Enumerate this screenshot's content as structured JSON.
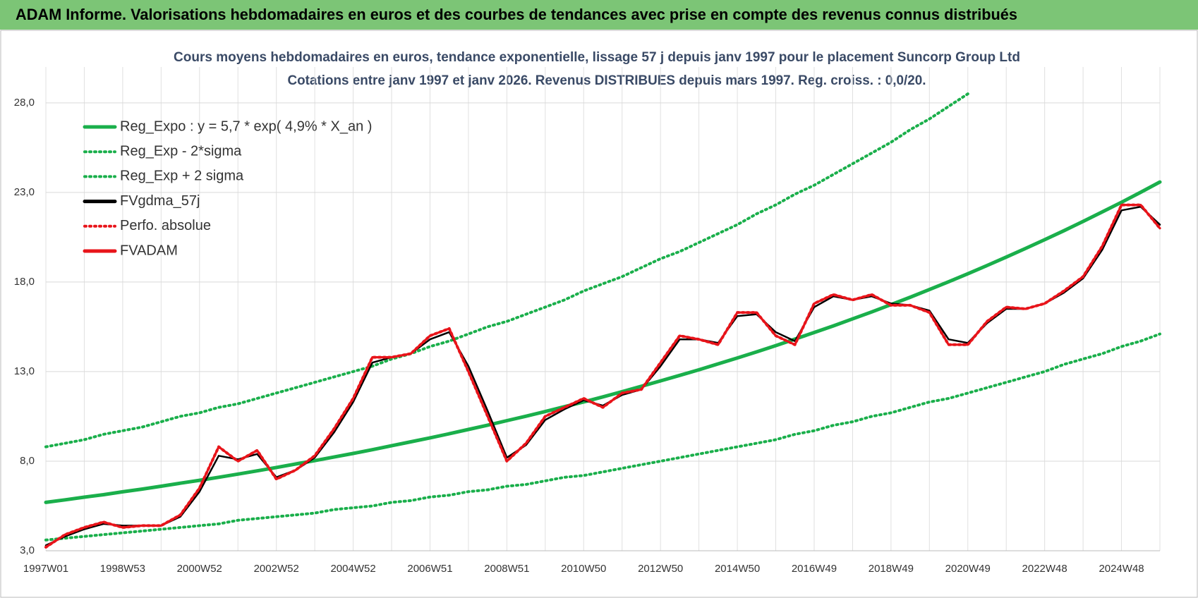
{
  "header": {
    "title": "ADAM Informe. Valorisations hebdomadaires en euros et des courbes de tendances avec prise en compte des revenus connus distribués"
  },
  "chart_data": {
    "type": "line",
    "title": "Cours moyens  hebdomadaires en euros, tendance exponentielle, lissage 57 j depuis janv 1997 pour le placement Suncorp Group Ltd",
    "subtitle": "Cotations entre janv 1997 et janv 2026. Revenus DISTRIBUES depuis mars 1997.  Reg. croiss. : 0,0/20.",
    "categories": [
      "1997W01",
      null,
      null,
      null,
      "1998W53",
      null,
      null,
      null,
      "2000W52",
      null,
      null,
      null,
      "2002W52",
      null,
      null,
      null,
      "2004W52",
      null,
      null,
      null,
      "2006W51",
      null,
      null,
      null,
      "2008W51",
      null,
      null,
      null,
      "2010W50",
      null,
      null,
      null,
      "2012W50",
      null,
      null,
      null,
      "2014W50",
      null,
      null,
      null,
      "2016W49",
      null,
      null,
      null,
      "2018W49",
      null,
      null,
      null,
      "2020W49",
      null,
      null,
      null,
      "2022W48",
      null,
      null,
      null,
      "2024W48",
      null,
      null
    ],
    "ylim": [
      3,
      30
    ],
    "yticks": [
      {
        "value": 3,
        "label": "3,0"
      },
      {
        "value": 8,
        "label": "8,0"
      },
      {
        "value": 13,
        "label": "13,0"
      },
      {
        "value": 18,
        "label": "18,0"
      },
      {
        "value": 23,
        "label": "23,0"
      },
      {
        "value": 28,
        "label": "28,0"
      }
    ],
    "grid": true,
    "legend": "upper left",
    "series": [
      {
        "name": "Reg_Expo : y = 5,7 * exp( 4,9% *  X_an )",
        "color": "#1aaf4b",
        "line_style": "solid",
        "values": [
          5.7,
          5.84,
          5.99,
          6.13,
          6.29,
          6.44,
          6.6,
          6.77,
          6.93,
          7.1,
          7.28,
          7.46,
          7.65,
          7.84,
          8.03,
          8.23,
          8.43,
          8.64,
          8.86,
          9.08,
          9.3,
          9.53,
          9.77,
          10.01,
          10.26,
          10.51,
          10.77,
          11.04,
          11.31,
          11.59,
          11.88,
          12.18,
          12.48,
          12.79,
          13.1,
          13.43,
          13.76,
          14.1,
          14.45,
          14.81,
          15.18,
          15.55,
          15.94,
          16.33,
          16.74,
          17.15,
          17.58,
          18.01,
          18.46,
          18.92,
          19.39,
          19.87,
          20.36,
          20.86,
          21.38,
          21.91,
          22.45,
          23.01,
          23.58
        ]
      },
      {
        "name": "Reg_Exp - 2*sigma",
        "color": "#1aaf4b",
        "line_style": "dotted",
        "values": [
          3.6,
          3.7,
          3.8,
          3.9,
          4.0,
          4.1,
          4.2,
          4.3,
          4.4,
          4.5,
          4.7,
          4.8,
          4.9,
          5.0,
          5.1,
          5.3,
          5.4,
          5.5,
          5.7,
          5.8,
          6.0,
          6.1,
          6.3,
          6.4,
          6.6,
          6.7,
          6.9,
          7.1,
          7.2,
          7.4,
          7.6,
          7.8,
          8.0,
          8.2,
          8.4,
          8.6,
          8.8,
          9.0,
          9.2,
          9.5,
          9.7,
          10.0,
          10.2,
          10.5,
          10.7,
          11.0,
          11.3,
          11.5,
          11.8,
          12.1,
          12.4,
          12.7,
          13.0,
          13.4,
          13.7,
          14.0,
          14.4,
          14.7,
          15.1
        ]
      },
      {
        "name": "Reg_Exp + 2 sigma",
        "color": "#1aaf4b",
        "line_style": "dotted",
        "values": [
          8.8,
          9.0,
          9.2,
          9.5,
          9.7,
          9.9,
          10.2,
          10.5,
          10.7,
          11.0,
          11.2,
          11.5,
          11.8,
          12.1,
          12.4,
          12.7,
          13.0,
          13.3,
          13.7,
          14.0,
          14.4,
          14.7,
          15.1,
          15.5,
          15.8,
          16.2,
          16.6,
          17.0,
          17.5,
          17.9,
          18.3,
          18.8,
          19.3,
          19.7,
          20.2,
          20.7,
          21.2,
          21.8,
          22.3,
          22.9,
          23.4,
          24.0,
          24.6,
          25.2,
          25.8,
          26.5,
          27.1,
          27.8,
          28.5,
          null,
          null,
          null,
          null,
          null,
          null,
          null,
          null,
          null,
          null
        ]
      },
      {
        "name": "FVgdma_57j",
        "color": "#000000",
        "line_style": "solid",
        "values": [
          3.3,
          3.8,
          4.2,
          4.5,
          4.4,
          4.4,
          4.4,
          4.9,
          6.3,
          8.3,
          8.1,
          8.4,
          7.1,
          7.5,
          8.2,
          9.6,
          11.3,
          13.5,
          13.8,
          14.0,
          14.8,
          15.2,
          13.3,
          10.8,
          8.2,
          8.9,
          10.3,
          10.9,
          11.4,
          11.1,
          11.7,
          12.0,
          13.3,
          14.8,
          14.8,
          14.6,
          16.1,
          16.2,
          15.2,
          14.7,
          16.6,
          17.2,
          17.0,
          17.2,
          16.8,
          16.7,
          16.4,
          14.8,
          14.6,
          15.7,
          16.5,
          16.5,
          16.8,
          17.4,
          18.2,
          19.8,
          22.0,
          22.2,
          21.2
        ]
      },
      {
        "name": "Perfo. absolue",
        "color": "#e8141a",
        "line_style": "dotted",
        "values": [
          3.2,
          3.9,
          4.3,
          4.6,
          4.3,
          4.4,
          4.4,
          5.0,
          6.5,
          8.8,
          8.0,
          8.6,
          7.0,
          7.5,
          8.3,
          9.8,
          11.5,
          13.8,
          13.8,
          14.0,
          15.0,
          15.4,
          13.0,
          10.5,
          8.0,
          9.0,
          10.5,
          11.0,
          11.5,
          11.0,
          11.8,
          12.0,
          13.5,
          15.0,
          14.8,
          14.5,
          16.3,
          16.3,
          15.0,
          14.5,
          16.8,
          17.3,
          17.0,
          17.3,
          16.7,
          16.7,
          16.3,
          14.5,
          14.5,
          15.8,
          16.6,
          16.5,
          16.8,
          17.5,
          18.3,
          20.0,
          22.3,
          22.3,
          21.0
        ]
      },
      {
        "name": "FVADAM",
        "color": "#e8141a",
        "line_style": "solid",
        "values": [
          3.2,
          3.9,
          4.3,
          4.6,
          4.3,
          4.4,
          4.4,
          5.0,
          6.5,
          8.8,
          8.0,
          8.6,
          7.0,
          7.5,
          8.3,
          9.8,
          11.5,
          13.8,
          13.8,
          14.0,
          15.0,
          15.4,
          13.0,
          10.5,
          8.0,
          9.0,
          10.5,
          11.0,
          11.5,
          11.0,
          11.8,
          12.0,
          13.5,
          15.0,
          14.8,
          14.5,
          16.3,
          16.3,
          15.0,
          14.5,
          16.8,
          17.3,
          17.0,
          17.3,
          16.7,
          16.7,
          16.3,
          14.5,
          14.5,
          15.8,
          16.6,
          16.5,
          16.8,
          17.5,
          18.3,
          20.0,
          22.3,
          22.3,
          21.0
        ]
      }
    ]
  }
}
